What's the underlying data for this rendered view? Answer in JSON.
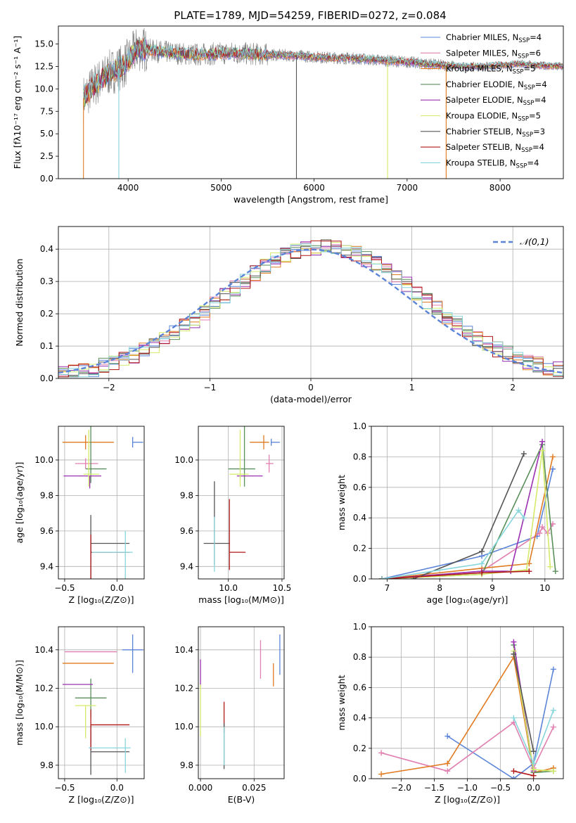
{
  "figure": {
    "title": "PLATE=1789, MJD=54259, FIBERID=0272, z=0.084"
  },
  "legend": [
    {
      "label": "Chabrier MILES, N",
      "sub": "SSP",
      "tail": "=4",
      "color": "#5b84d8"
    },
    {
      "label": "Salpeter MILES, N",
      "sub": "SSP",
      "tail": "=6",
      "color": "#e07fb0"
    },
    {
      "label": "Kroupa MILES, N",
      "sub": "SSP",
      "tail": "=5",
      "color": "#e07b22"
    },
    {
      "label": "Chabrier ELODIE, N",
      "sub": "SSP",
      "tail": "=4",
      "color": "#5a8f5a"
    },
    {
      "label": "Salpeter ELODIE, N",
      "sub": "SSP",
      "tail": "=4",
      "color": "#9b30b0"
    },
    {
      "label": "Kroupa ELODIE, N",
      "sub": "SSP",
      "tail": "=5",
      "color": "#d4ea6a"
    },
    {
      "label": "Chabrier STELIB, N",
      "sub": "SSP",
      "tail": "=3",
      "color": "#555555"
    },
    {
      "label": "Salpeter STELIB, N",
      "sub": "SSP",
      "tail": "=4",
      "color": "#b01818"
    },
    {
      "label": "Kroupa STELIB, N",
      "sub": "SSP",
      "tail": "=4",
      "color": "#86d6dc"
    }
  ],
  "chart_data": [
    {
      "id": "spectrum",
      "type": "line",
      "xlabel": "wavelength [Angstrom, rest frame]",
      "ylabel": "Flux [fλ10⁻¹⁷ erg cm⁻² s⁻¹ A⁻¹]",
      "xlim": [
        3250,
        8680
      ],
      "ylim": [
        0,
        17
      ],
      "xticks": [
        4000,
        5000,
        6000,
        7000,
        8000
      ],
      "yticks": [
        0.0,
        2.5,
        5.0,
        7.5,
        10.0,
        12.5,
        15.0
      ],
      "continuum_x": [
        3520,
        3650,
        3800,
        3950,
        4100,
        4300,
        4500,
        4700,
        4900,
        5100,
        5300,
        5500,
        5800,
        6100,
        6400,
        6700,
        7000,
        7200,
        7400,
        7600,
        7800,
        8000,
        8200,
        8400,
        8680
      ],
      "continuum_y": [
        9.0,
        10.5,
        11.8,
        12.5,
        14.5,
        14.2,
        14.0,
        13.8,
        13.9,
        14.0,
        13.9,
        13.8,
        13.7,
        13.5,
        13.4,
        13.2,
        13.0,
        12.8,
        12.6,
        12.5,
        12.5,
        12.6,
        12.8,
        12.6,
        12.5
      ],
      "drop_lines": [
        {
          "x": 3520,
          "color": "#e07b22"
        },
        {
          "x": 3900,
          "color": "#86d6dc"
        },
        {
          "x": 5810,
          "color": "#555555"
        },
        {
          "x": 6790,
          "color": "#d4ea6a"
        },
        {
          "x": 7420,
          "color": "#e07b22"
        }
      ]
    },
    {
      "id": "residual-histogram",
      "type": "histogram",
      "xlabel": "(data-model)/error",
      "ylabel": "Normed distribution",
      "xlim": [
        -2.5,
        2.5
      ],
      "ylim": [
        0,
        0.47
      ],
      "xticks": [
        -2,
        -1,
        0,
        1,
        2
      ],
      "yticks": [
        0.0,
        0.1,
        0.2,
        0.3,
        0.4
      ],
      "reference_curve": {
        "name": "𝒩(0,1)",
        "color": "#5b84d8"
      },
      "bins": 50
    },
    {
      "id": "age-vs-Z",
      "type": "errorbar",
      "xlabel": "Z [log₁₀(Z/Z⊙)]",
      "ylabel": "age  [log₁₀(age/yr)]",
      "xlim": [
        -0.56,
        0.26
      ],
      "ylim": [
        9.33,
        10.19
      ],
      "xticks": [
        -0.5,
        0.0
      ],
      "yticks": [
        9.4,
        9.6,
        9.8,
        10.0
      ],
      "points": [
        {
          "c": "#5b84d8",
          "x": 0.15,
          "xe": [
            0.0,
            0.1
          ],
          "y": 10.1,
          "ye": [
            0.03,
            0.03
          ]
        },
        {
          "c": "#e07b22",
          "x": -0.3,
          "xe": [
            0.22,
            0.27
          ],
          "y": 10.1,
          "ye": [
            0.04,
            0.04
          ]
        },
        {
          "c": "#e07fb0",
          "x": -0.3,
          "xe": [
            0.1,
            0.12
          ],
          "y": 9.98,
          "ye": [
            0.03,
            0.03
          ]
        },
        {
          "c": "#5a8f5a",
          "x": -0.25,
          "xe": [
            0.05,
            0.15
          ],
          "y": 9.95,
          "ye": [
            0.08,
            0.3
          ]
        },
        {
          "c": "#9b30b0",
          "x": -0.26,
          "xe": [
            0.25,
            0.11
          ],
          "y": 9.91,
          "ye": [
            0.07,
            0.0
          ]
        },
        {
          "c": "#d4ea6a",
          "x": -0.27,
          "xe": [
            0.05,
            0.1
          ],
          "y": 9.92,
          "ye": [
            0.07,
            0.25
          ]
        },
        {
          "c": "#555555",
          "x": -0.25,
          "xe": [
            0.0,
            0.37
          ],
          "y": 9.53,
          "ye": [
            0.38,
            0.16
          ]
        },
        {
          "c": "#b01818",
          "x": -0.25,
          "xe": [
            0.0,
            0.37
          ],
          "y": 9.48,
          "ye": [
            0.42,
            0.1
          ]
        },
        {
          "c": "#86d6dc",
          "x": 0.08,
          "xe": [
            0.32,
            0.07
          ],
          "y": 9.48,
          "ye": [
            0.38,
            0.12
          ]
        }
      ]
    },
    {
      "id": "age-vs-mass",
      "type": "errorbar",
      "xlabel": "mass [log₁₀(M/M⊙)]",
      "ylabel": "",
      "xlim": [
        9.72,
        10.52
      ],
      "ylim": [
        9.33,
        10.19
      ],
      "xticks": [
        10.0,
        10.5
      ],
      "yticks": [
        9.4,
        9.6,
        9.8,
        10.0
      ],
      "points": [
        {
          "c": "#5b84d8",
          "x": 10.4,
          "xe": [
            0.0,
            0.08
          ],
          "y": 10.1,
          "ye": [
            0.02,
            0.02
          ]
        },
        {
          "c": "#e07b22",
          "x": 10.33,
          "xe": [
            0.13,
            0.05
          ],
          "y": 10.1,
          "ye": [
            0.04,
            0.04
          ]
        },
        {
          "c": "#e07fb0",
          "x": 10.38,
          "xe": [
            0.03,
            0.04
          ],
          "y": 9.98,
          "ye": [
            0.05,
            0.05
          ]
        },
        {
          "c": "#5a8f5a",
          "x": 10.15,
          "xe": [
            0.15,
            0.1
          ],
          "y": 9.95,
          "ye": [
            0.1,
            0.37
          ]
        },
        {
          "c": "#9b30b0",
          "x": 10.22,
          "xe": [
            0.14,
            0.1
          ],
          "y": 9.91,
          "ye": [
            0.0,
            0.0
          ]
        },
        {
          "c": "#d4ea6a",
          "x": 10.11,
          "xe": [
            0.1,
            0.08
          ],
          "y": 9.92,
          "ye": [
            0.07,
            0.25
          ]
        },
        {
          "c": "#555555",
          "x": 9.87,
          "xe": [
            0.1,
            0.14
          ],
          "y": 9.53,
          "ye": [
            0.12,
            0.35
          ]
        },
        {
          "c": "#b01818",
          "x": 10.01,
          "xe": [
            0.0,
            0.15
          ],
          "y": 9.48,
          "ye": [
            0.1,
            0.3
          ]
        },
        {
          "c": "#86d6dc",
          "x": 9.87,
          "xe": [
            0.0,
            0.0
          ],
          "y": 9.48,
          "ye": [
            0.11,
            0.2
          ]
        }
      ]
    },
    {
      "id": "weight-vs-age",
      "type": "line",
      "xlabel": "age  [log₁₀(age/yr)]",
      "ylabel": "mass weight",
      "xlim": [
        6.7,
        10.35
      ],
      "ylim": [
        0,
        1
      ],
      "xticks": [
        7,
        8,
        9,
        10
      ],
      "yticks": [
        0.0,
        0.2,
        0.4,
        0.6,
        0.8,
        1.0
      ],
      "series": [
        {
          "c": "#5b84d8",
          "x": [
            6.9,
            8.8,
            9.85,
            10.15
          ],
          "y": [
            0.0,
            0.15,
            0.28,
            0.72
          ]
        },
        {
          "c": "#e07fb0",
          "x": [
            6.9,
            8.8,
            9.9,
            9.95,
            10.05,
            10.15
          ],
          "y": [
            0.0,
            0.05,
            0.3,
            0.34,
            0.3,
            0.36
          ]
        },
        {
          "c": "#e07b22",
          "x": [
            6.9,
            8.8,
            9.7,
            10.15
          ],
          "y": [
            0.0,
            0.07,
            0.1,
            0.8
          ]
        },
        {
          "c": "#5a8f5a",
          "x": [
            6.9,
            8.8,
            9.95,
            10.2
          ],
          "y": [
            0.0,
            0.03,
            0.88,
            0.05
          ]
        },
        {
          "c": "#9b30b0",
          "x": [
            6.9,
            8.8,
            9.35,
            9.95
          ],
          "y": [
            0.0,
            0.05,
            0.05,
            0.9
          ]
        },
        {
          "c": "#d4ea6a",
          "x": [
            6.9,
            8.8,
            9.65,
            9.95,
            10.1
          ],
          "y": [
            0.0,
            0.03,
            0.06,
            0.84,
            0.08
          ]
        },
        {
          "c": "#555555",
          "x": [
            7.5,
            8.8,
            9.6
          ],
          "y": [
            0.0,
            0.18,
            0.82
          ]
        },
        {
          "c": "#b01818",
          "x": [
            6.9,
            8.8,
            9.7
          ],
          "y": [
            0.0,
            0.04,
            0.05
          ]
        },
        {
          "c": "#86d6dc",
          "x": [
            6.9,
            8.8,
            9.5,
            9.6
          ],
          "y": [
            0.0,
            0.1,
            0.45,
            0.4
          ]
        }
      ]
    },
    {
      "id": "mass-vs-Z",
      "type": "errorbar",
      "xlabel": "Z [log₁₀(Z/Z⊙)]",
      "ylabel": "mass [log₁₀(M/M⊙)]",
      "xlim": [
        -0.56,
        0.26
      ],
      "ylim": [
        9.73,
        10.52
      ],
      "xticks": [
        -0.5,
        0.0
      ],
      "yticks": [
        9.8,
        10.0,
        10.2,
        10.4
      ],
      "points": [
        {
          "c": "#5b84d8",
          "x": 0.15,
          "xe": [
            0.1,
            0.1
          ],
          "y": 10.4,
          "ye": [
            0.12,
            0.08
          ]
        },
        {
          "c": "#e07fb0",
          "x": -0.3,
          "xe": [
            0.2,
            0.3
          ],
          "y": 10.39,
          "ye": [
            0.0,
            0.0
          ]
        },
        {
          "c": "#e07b22",
          "x": -0.3,
          "xe": [
            0.22,
            0.27
          ],
          "y": 10.33,
          "ye": [
            0.0,
            0.0
          ]
        },
        {
          "c": "#5a8f5a",
          "x": -0.25,
          "xe": [
            0.15,
            0.15
          ],
          "y": 10.15,
          "ye": [
            0.1,
            0.1
          ]
        },
        {
          "c": "#9b30b0",
          "x": -0.3,
          "xe": [
            0.22,
            0.07
          ],
          "y": 10.22,
          "ye": [
            0.0,
            0.0
          ]
        },
        {
          "c": "#d4ea6a",
          "x": -0.3,
          "xe": [
            0.1,
            0.1
          ],
          "y": 10.11,
          "ye": [
            0.17,
            0.0
          ]
        },
        {
          "c": "#555555",
          "x": -0.25,
          "xe": [
            0.0,
            0.37
          ],
          "y": 9.87,
          "ye": [
            0.12,
            0.14
          ]
        },
        {
          "c": "#b01818",
          "x": -0.25,
          "xe": [
            0.0,
            0.37
          ],
          "y": 10.01,
          "ye": [
            0.13,
            0.08
          ]
        },
        {
          "c": "#86d6dc",
          "x": 0.08,
          "xe": [
            0.35,
            0.05
          ],
          "y": 9.89,
          "ye": [
            0.13,
            0.05
          ]
        }
      ]
    },
    {
      "id": "mass-vs-EBV",
      "type": "errorbar",
      "xlabel": "E(B-V)",
      "ylabel": "",
      "xlim": [
        -0.001,
        0.039
      ],
      "ylim": [
        9.73,
        10.52
      ],
      "xticks": [
        0.0,
        0.025
      ],
      "yticks": [
        9.8,
        10.0,
        10.2,
        10.4
      ],
      "points": [
        {
          "c": "#5b84d8",
          "x": 0.037,
          "xe": [
            0,
            0
          ],
          "y": 10.37,
          "ye": [
            0.1,
            0.11
          ]
        },
        {
          "c": "#e07fb0",
          "x": 0.028,
          "xe": [
            0,
            0
          ],
          "y": 10.35,
          "ye": [
            0.1,
            0.1
          ]
        },
        {
          "c": "#e07b22",
          "x": 0.034,
          "xe": [
            0,
            0
          ],
          "y": 10.33,
          "ye": [
            0.12,
            0.0
          ]
        },
        {
          "c": "#9b30b0",
          "x": 0.0,
          "xe": [
            0,
            0
          ],
          "y": 10.28,
          "ye": [
            0.07,
            0.07
          ]
        },
        {
          "c": "#d4ea6a",
          "x": 0.0,
          "xe": [
            0,
            0
          ],
          "y": 10.1,
          "ye": [
            0.15,
            0.12
          ]
        },
        {
          "c": "#b01818",
          "x": 0.011,
          "xe": [
            0,
            0
          ],
          "y": 10.05,
          "ye": [
            0.08,
            0.08
          ]
        },
        {
          "c": "#555555",
          "x": 0.011,
          "xe": [
            0,
            0
          ],
          "y": 9.88,
          "ye": [
            0.1,
            0.14
          ]
        },
        {
          "c": "#86d6dc",
          "x": 0.011,
          "xe": [
            0,
            0
          ],
          "y": 9.9,
          "ye": [
            0.1,
            0.1
          ]
        }
      ]
    },
    {
      "id": "weight-vs-Z",
      "type": "line",
      "xlabel": "Z [log₁₀(Z/Z⊙)]",
      "ylabel": "mass weight",
      "xlim": [
        -2.45,
        0.45
      ],
      "ylim": [
        0,
        1
      ],
      "xticks": [
        -2.0,
        -1.5,
        -1.0,
        -0.5,
        0.0
      ],
      "yticks": [
        0.0,
        0.2,
        0.4,
        0.6,
        0.8,
        1.0
      ],
      "series": [
        {
          "c": "#5b84d8",
          "x": [
            -1.3,
            -0.3,
            0.0,
            0.3
          ],
          "y": [
            0.28,
            0.0,
            0.1,
            0.72
          ]
        },
        {
          "c": "#e07fb0",
          "x": [
            -2.3,
            -1.3,
            -0.3,
            0.0,
            0.3
          ],
          "y": [
            0.17,
            0.05,
            0.37,
            0.07,
            0.34
          ]
        },
        {
          "c": "#e07b22",
          "x": [
            -2.3,
            -1.3,
            -0.3,
            0.0,
            0.3
          ],
          "y": [
            0.03,
            0.1,
            0.8,
            0.04,
            0.07
          ]
        },
        {
          "c": "#5a8f5a",
          "x": [
            -0.3,
            0.0,
            0.3
          ],
          "y": [
            0.88,
            0.04,
            0.05
          ]
        },
        {
          "c": "#9b30b0",
          "x": [
            -0.3,
            0.0
          ],
          "y": [
            0.9,
            0.05
          ]
        },
        {
          "c": "#d4ea6a",
          "x": [
            -0.3,
            0.0,
            0.3
          ],
          "y": [
            0.84,
            0.06,
            0.05
          ]
        },
        {
          "c": "#555555",
          "x": [
            -0.3,
            0.0
          ],
          "y": [
            0.82,
            0.18
          ]
        },
        {
          "c": "#b01818",
          "x": [
            -0.3,
            0.0
          ],
          "y": [
            0.05,
            0.02
          ]
        },
        {
          "c": "#86d6dc",
          "x": [
            -0.3,
            0.0,
            0.3
          ],
          "y": [
            0.4,
            0.1,
            0.45
          ]
        }
      ]
    }
  ]
}
